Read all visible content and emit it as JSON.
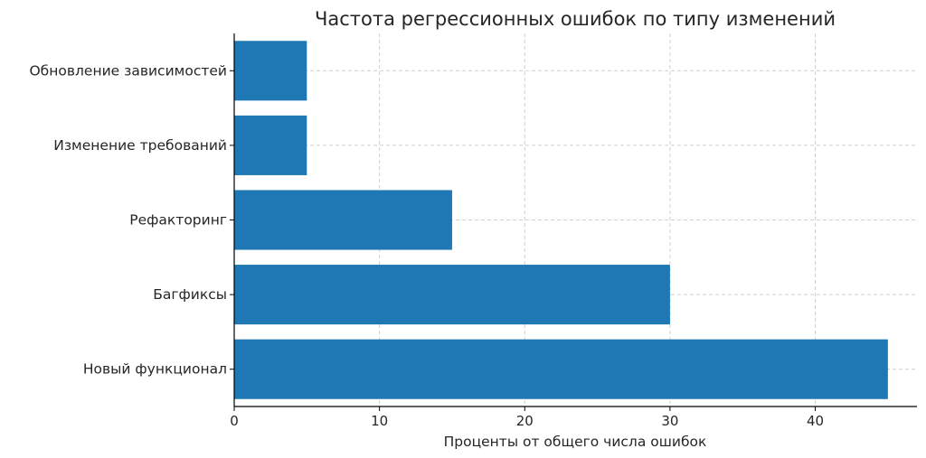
{
  "chart_data": {
    "type": "bar",
    "orientation": "horizontal",
    "title": "Частота регрессионных ошибок по типу изменений",
    "xlabel": "Проценты от общего числа ошибок",
    "ylabel": "",
    "categories": [
      "Новый функционал",
      "Багфиксы",
      "Рефакторинг",
      "Изменение требований",
      "Обновление зависимостей"
    ],
    "values": [
      45,
      30,
      15,
      5,
      5
    ],
    "xlim": [
      0,
      47
    ],
    "xticks": [
      0,
      10,
      20,
      30,
      40
    ],
    "grid": true,
    "legend": "none",
    "bar_color": "#1f77b4"
  }
}
